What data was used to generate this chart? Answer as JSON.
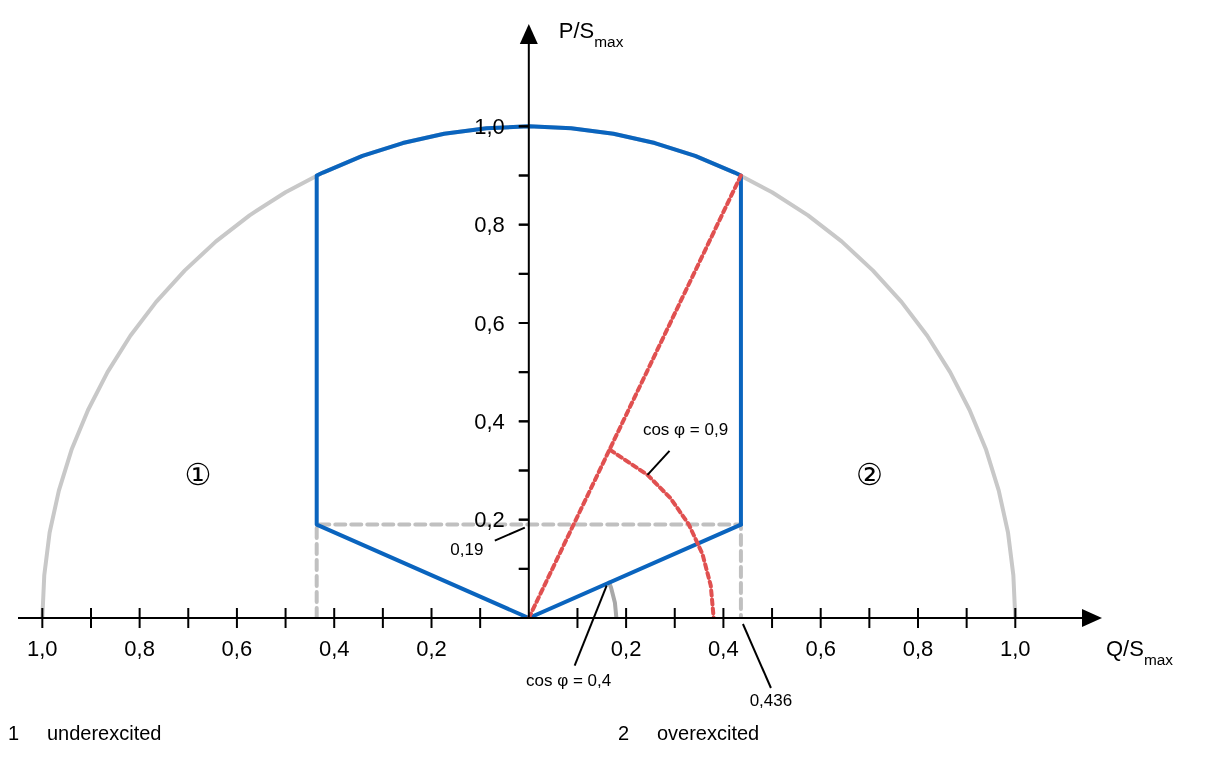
{
  "chart_data": {
    "type": "line",
    "xlabel": "Q/S$_{max}$",
    "ylabel": "P/S$_{max}$",
    "xlim": [
      -1.05,
      1.17
    ],
    "ylim": [
      0,
      1.2
    ],
    "xticks": [
      {
        "value": -1,
        "label": "1,0"
      },
      {
        "value": -0.9,
        "label": null
      },
      {
        "value": -0.8,
        "label": "0,8"
      },
      {
        "value": -0.7,
        "label": null
      },
      {
        "value": -0.6,
        "label": "0,6"
      },
      {
        "value": -0.5,
        "label": null
      },
      {
        "value": -0.4,
        "label": "0,4"
      },
      {
        "value": -0.3,
        "label": null
      },
      {
        "value": -0.2,
        "label": "0,2"
      },
      {
        "value": -0.1,
        "label": null
      },
      {
        "value": 0.1,
        "label": null
      },
      {
        "value": 0.2,
        "label": "0,2"
      },
      {
        "value": 0.3,
        "label": null
      },
      {
        "value": 0.4,
        "label": "0,4"
      },
      {
        "value": 0.5,
        "label": null
      },
      {
        "value": 0.6,
        "label": "0,6"
      },
      {
        "value": 0.7,
        "label": null
      },
      {
        "value": 0.8,
        "label": "0,8"
      },
      {
        "value": 0.9,
        "label": null
      },
      {
        "value": 1,
        "label": "1,0"
      }
    ],
    "yticks": [
      {
        "value": 0.1,
        "label": null
      },
      {
        "value": 0.2,
        "label": "0,2"
      },
      {
        "value": 0.3,
        "label": null
      },
      {
        "value": 0.4,
        "label": "0,4"
      },
      {
        "value": 0.5,
        "label": null
      },
      {
        "value": 0.6,
        "label": "0,6"
      },
      {
        "value": 0.7,
        "label": null
      },
      {
        "value": 0.8,
        "label": "0,8"
      },
      {
        "value": 0.9,
        "label": null
      },
      {
        "value": 1,
        "label": "1,0"
      }
    ],
    "series": [
      {
        "color": "#c8c8c8",
        "x": [
          -1,
          -0.996,
          -0.985,
          -0.966,
          -0.94,
          -0.906,
          -0.866,
          -0.819,
          -0.766,
          -0.707,
          -0.643,
          -0.574,
          -0.5,
          -0.423,
          -0.342,
          -0.259,
          -0.174,
          -0.087,
          0,
          0.087,
          0.174,
          0.259,
          0.342,
          0.423,
          0.5,
          0.574,
          0.643,
          0.707,
          0.766,
          0.819,
          0.866,
          0.906,
          0.94,
          0.966,
          0.985,
          0.996,
          1
        ],
        "values": [
          0,
          0.087,
          0.174,
          0.259,
          0.342,
          0.423,
          0.5,
          0.574,
          0.643,
          0.707,
          0.766,
          0.819,
          0.866,
          0.906,
          0.94,
          0.966,
          0.985,
          0.996,
          1,
          0.996,
          0.985,
          0.966,
          0.94,
          0.906,
          0.866,
          0.819,
          0.766,
          0.707,
          0.643,
          0.574,
          0.5,
          0.423,
          0.342,
          0.259,
          0.174,
          0.087,
          0
        ]
      },
      {
        "color": "#c0c0c0",
        "line_style": "dashed",
        "x": [
          -0.436,
          -0.436,
          0.436,
          0.436
        ],
        "values": [
          0,
          0.19,
          0.19,
          0
        ]
      },
      {
        "color": "#a8a8a8",
        "x": [
          0.18,
          0.177,
          0.169,
          0.165
        ],
        "values": [
          0,
          0.031,
          0.062,
          0.072
        ]
      },
      {
        "color": "#0a64be",
        "x": [
          0,
          -0.436,
          -0.436,
          -0.423,
          -0.342,
          -0.259,
          -0.174,
          -0.087,
          0,
          0.087,
          0.174,
          0.259,
          0.342,
          0.423,
          0.436,
          0.436
        ],
        "values": [
          0,
          0.19,
          0.9,
          0.906,
          0.94,
          0.966,
          0.985,
          0.996,
          1,
          0.996,
          0.985,
          0.966,
          0.94,
          0.906,
          0.9,
          0.19
        ]
      },
      {
        "color": "#0a64be",
        "x": [
          0.436,
          0
        ],
        "values": [
          0.19,
          0
        ]
      },
      {
        "color": "#e05050",
        "line_style": "dotted",
        "x": [
          0,
          0.436
        ],
        "values": [
          0,
          0.9
        ]
      },
      {
        "color": "#e05050",
        "line_style": "dotted",
        "x": [
          0.167,
          0.244,
          0.291,
          0.329,
          0.357,
          0.374,
          0.38
        ],
        "values": [
          0.342,
          0.291,
          0.244,
          0.19,
          0.13,
          0.066,
          0
        ]
      }
    ],
    "annotations": [
      {
        "text": "0,19",
        "x": 0,
        "y": 0.19
      },
      {
        "text": "0,436",
        "x": 0.436,
        "y": 0
      },
      {
        "text": "cos φ = 0,9",
        "x": 0.244,
        "y": 0.291
      },
      {
        "text": "cos φ = 0,4",
        "x": 0.16,
        "y": 0.07
      },
      "①",
      "②",
      "1     underexcited",
      "2     overexcited"
    ]
  }
}
